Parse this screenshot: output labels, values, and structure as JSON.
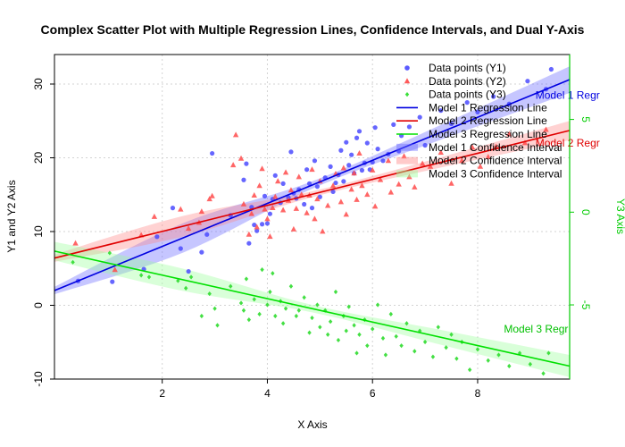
{
  "chart_data": {
    "type": "scatter",
    "title": "Complex Scatter Plot with Multiple Regression Lines, Confidence Intervals, and Dual Y-Axis",
    "xlabel": "X Axis",
    "ylabel": "Y1 and Y2 Axis",
    "y3label": "Y3 Axis",
    "xlim": [
      -0.05,
      9.75
    ],
    "ylim": [
      -10,
      34
    ],
    "y3lim": [
      -9,
      8.5
    ],
    "xticks": [
      2,
      4,
      6,
      8
    ],
    "yticks": [
      -10,
      0,
      10,
      20,
      30
    ],
    "y3ticks": [
      -5,
      0,
      5
    ],
    "grid": true,
    "legend_position": "top-right",
    "colors": {
      "y1": "#2929ff",
      "y2": "#ff2929",
      "y3": "#1fe01f"
    },
    "legend": [
      {
        "label": "Data points (Y1)",
        "kind": "point-circle",
        "color": "#5a5aff"
      },
      {
        "label": "Data points (Y2)",
        "kind": "point-triangle",
        "color": "#ff5a5a"
      },
      {
        "label": "Data points (Y3)",
        "kind": "point-diamond",
        "color": "#3ce03c"
      },
      {
        "label": "Model 1 Regression Line",
        "kind": "line",
        "color": "#0000e0"
      },
      {
        "label": "Model 2 Regression Line",
        "kind": "line",
        "color": "#e00000"
      },
      {
        "label": "Model 3 Regression Line",
        "kind": "line",
        "color": "#00e000"
      },
      {
        "label": "Model 1 Confidence Interval",
        "kind": "band",
        "color": "#6a6aff"
      },
      {
        "label": "Model 2 Confidence Interval",
        "kind": "band",
        "color": "#ff8a8a"
      },
      {
        "label": "Model 3 Confidence Interval",
        "kind": "band",
        "color": "#9cff9c"
      }
    ],
    "annotations": [
      {
        "text": "Model 1 Regr",
        "x": 9.1,
        "y": 28.0,
        "axis": "y1",
        "color": "#0000e0"
      },
      {
        "text": "Model 2 Regr",
        "x": 9.1,
        "y": 21.5,
        "axis": "y1",
        "color": "#e00000"
      },
      {
        "text": "Model 3 Regr",
        "x": 8.5,
        "y": -6.5,
        "axis": "y3",
        "color": "#00c000"
      }
    ],
    "regression": [
      {
        "name": "Model 1 Regression Line",
        "axis": "y1",
        "color": "#0000e0",
        "band": "#6a6aff",
        "x": [
          -0.05,
          9.75
        ],
        "y": [
          2.0,
          30.6
        ],
        "band_half": [
          0.5,
          2.0,
          0.5,
          1.0,
          1.8
        ]
      },
      {
        "name": "Model 2 Regression Line",
        "axis": "y1",
        "color": "#e00000",
        "band": "#ff8a8a",
        "x": [
          -0.05,
          9.75
        ],
        "y": [
          6.4,
          23.7
        ],
        "band_half": [
          0.5,
          1.4,
          0.4,
          0.7,
          1.3
        ]
      },
      {
        "name": "Model 3 Regression Line",
        "axis": "y3",
        "color": "#00e000",
        "band": "#9cff9c",
        "x": [
          -0.05,
          9.75
        ],
        "y": [
          -2.1,
          -8.3
        ],
        "band_half": [
          0.5,
          0.6,
          0.2,
          0.4,
          0.6
        ]
      }
    ],
    "series": [
      {
        "name": "Data points (Y1)",
        "axis": "y1",
        "marker": "circle",
        "color": "#4b4bff",
        "points": [
          [
            0.4,
            3.3
          ],
          [
            1.05,
            3.2
          ],
          [
            1.65,
            4.9
          ],
          [
            1.9,
            9.3
          ],
          [
            2.35,
            7.7
          ],
          [
            2.5,
            4.6
          ],
          [
            2.75,
            7.2
          ],
          [
            2.85,
            9.6
          ],
          [
            2.95,
            20.6
          ],
          [
            2.2,
            13.2
          ],
          [
            3.3,
            12.2
          ],
          [
            3.55,
            17.0
          ],
          [
            3.6,
            19.2
          ],
          [
            3.65,
            8.4
          ],
          [
            3.7,
            13.3
          ],
          [
            3.75,
            10.9
          ],
          [
            3.8,
            10.1
          ],
          [
            3.9,
            11.0
          ],
          [
            3.95,
            14.8
          ],
          [
            4.0,
            11.1
          ],
          [
            4.05,
            12.4
          ],
          [
            4.1,
            14.4
          ],
          [
            4.15,
            17.6
          ],
          [
            4.25,
            13.9
          ],
          [
            4.3,
            16.5
          ],
          [
            4.4,
            14.6
          ],
          [
            4.45,
            20.8
          ],
          [
            4.5,
            15.2
          ],
          [
            4.55,
            14.5
          ],
          [
            4.6,
            15.7
          ],
          [
            4.7,
            13.7
          ],
          [
            4.75,
            18.4
          ],
          [
            4.8,
            16.5
          ],
          [
            4.85,
            13.2
          ],
          [
            4.9,
            19.6
          ],
          [
            4.95,
            16.1
          ],
          [
            5.0,
            14.7
          ],
          [
            5.1,
            17.3
          ],
          [
            5.2,
            18.8
          ],
          [
            5.25,
            15.4
          ],
          [
            5.3,
            16.6
          ],
          [
            5.35,
            17.7
          ],
          [
            5.4,
            21.0
          ],
          [
            5.45,
            16.8
          ],
          [
            5.5,
            22.1
          ],
          [
            5.55,
            19.0
          ],
          [
            5.6,
            20.4
          ],
          [
            5.65,
            17.9
          ],
          [
            5.7,
            22.7
          ],
          [
            5.75,
            23.6
          ],
          [
            5.8,
            18.3
          ],
          [
            5.85,
            19.3
          ],
          [
            5.9,
            22.0
          ],
          [
            5.95,
            18.4
          ],
          [
            6.0,
            19.4
          ],
          [
            6.05,
            24.1
          ],
          [
            6.1,
            21.2
          ],
          [
            6.2,
            19.6
          ],
          [
            6.3,
            20.5
          ],
          [
            6.4,
            24.5
          ],
          [
            6.5,
            20.9
          ],
          [
            6.55,
            23.0
          ],
          [
            6.7,
            24.2
          ],
          [
            6.9,
            25.5
          ],
          [
            7.0,
            21.7
          ],
          [
            7.3,
            26.4
          ],
          [
            7.5,
            24.6
          ],
          [
            7.8,
            27.5
          ],
          [
            8.0,
            26.2
          ],
          [
            8.3,
            28.3
          ],
          [
            8.6,
            27.3
          ],
          [
            8.95,
            30.4
          ],
          [
            9.3,
            29.3
          ],
          [
            9.4,
            32.0
          ]
        ]
      },
      {
        "name": "Data points (Y2)",
        "axis": "y1",
        "marker": "triangle",
        "color": "#ff4b4b",
        "points": [
          [
            0.35,
            8.4
          ],
          [
            1.1,
            4.8
          ],
          [
            1.6,
            9.5
          ],
          [
            1.85,
            12.0
          ],
          [
            2.35,
            13.0
          ],
          [
            2.5,
            10.4
          ],
          [
            2.7,
            11.2
          ],
          [
            2.75,
            12.7
          ],
          [
            2.9,
            14.4
          ],
          [
            2.95,
            14.8
          ],
          [
            3.35,
            19.0
          ],
          [
            3.4,
            23.1
          ],
          [
            3.5,
            19.9
          ],
          [
            3.55,
            13.7
          ],
          [
            3.65,
            9.6
          ],
          [
            3.7,
            12.4
          ],
          [
            3.75,
            14.9
          ],
          [
            3.8,
            10.6
          ],
          [
            3.85,
            16.2
          ],
          [
            3.9,
            18.5
          ],
          [
            3.95,
            13.0
          ],
          [
            4.0,
            11.7
          ],
          [
            4.05,
            9.3
          ],
          [
            4.1,
            13.2
          ],
          [
            4.15,
            14.7
          ],
          [
            4.2,
            16.8
          ],
          [
            4.3,
            12.9
          ],
          [
            4.35,
            18.0
          ],
          [
            4.4,
            14.2
          ],
          [
            4.45,
            15.6
          ],
          [
            4.5,
            10.3
          ],
          [
            4.55,
            13.1
          ],
          [
            4.6,
            17.4
          ],
          [
            4.65,
            15.0
          ],
          [
            4.75,
            12.5
          ],
          [
            4.8,
            14.9
          ],
          [
            4.85,
            18.4
          ],
          [
            4.9,
            11.7
          ],
          [
            4.95,
            14.4
          ],
          [
            5.0,
            16.8
          ],
          [
            5.05,
            10.0
          ],
          [
            5.15,
            13.5
          ],
          [
            5.25,
            16.2
          ],
          [
            5.3,
            17.8
          ],
          [
            5.4,
            14.0
          ],
          [
            5.45,
            18.6
          ],
          [
            5.5,
            12.3
          ],
          [
            5.6,
            15.7
          ],
          [
            5.65,
            17.9
          ],
          [
            5.7,
            14.3
          ],
          [
            5.75,
            20.6
          ],
          [
            5.8,
            16.2
          ],
          [
            5.9,
            15.0
          ],
          [
            6.0,
            18.3
          ],
          [
            6.05,
            13.4
          ],
          [
            6.15,
            17.0
          ],
          [
            6.3,
            19.6
          ],
          [
            6.35,
            15.3
          ],
          [
            6.5,
            16.4
          ],
          [
            6.6,
            20.2
          ],
          [
            6.7,
            17.4
          ],
          [
            6.8,
            16.0
          ],
          [
            6.95,
            19.2
          ],
          [
            7.1,
            18.8
          ],
          [
            7.3,
            20.7
          ],
          [
            7.5,
            16.5
          ],
          [
            7.7,
            19.6
          ],
          [
            7.9,
            21.4
          ],
          [
            8.05,
            18.8
          ],
          [
            8.2,
            20.1
          ],
          [
            8.35,
            21.5
          ],
          [
            8.6,
            23.2
          ],
          [
            8.9,
            22.0
          ],
          [
            9.3,
            23.8
          ]
        ]
      },
      {
        "name": "Data points (Y3)",
        "axis": "y3",
        "marker": "diamond",
        "color": "#2fdc2f",
        "points": [
          [
            0.3,
            -2.7
          ],
          [
            1.0,
            -2.2
          ],
          [
            1.6,
            -3.4
          ],
          [
            1.75,
            -3.5
          ],
          [
            2.3,
            -3.7
          ],
          [
            2.45,
            -4.1
          ],
          [
            2.55,
            -3.5
          ],
          [
            2.75,
            -5.6
          ],
          [
            2.9,
            -4.4
          ],
          [
            3.0,
            -5.2
          ],
          [
            3.05,
            -6.1
          ],
          [
            3.3,
            -4.0
          ],
          [
            3.5,
            -4.9
          ],
          [
            3.55,
            -5.3
          ],
          [
            3.6,
            -3.6
          ],
          [
            3.65,
            -5.8
          ],
          [
            3.75,
            -4.7
          ],
          [
            3.85,
            -5.5
          ],
          [
            3.9,
            -3.1
          ],
          [
            4.0,
            -5.0
          ],
          [
            4.05,
            -4.3
          ],
          [
            4.1,
            -3.3
          ],
          [
            4.15,
            -5.6
          ],
          [
            4.25,
            -4.8
          ],
          [
            4.3,
            -6.0
          ],
          [
            4.35,
            -5.2
          ],
          [
            4.45,
            -4.0
          ],
          [
            4.55,
            -5.6
          ],
          [
            4.6,
            -5.3
          ],
          [
            4.7,
            -4.6
          ],
          [
            4.8,
            -6.5
          ],
          [
            4.85,
            -5.7
          ],
          [
            4.95,
            -5.0
          ],
          [
            5.0,
            -6.2
          ],
          [
            5.1,
            -5.3
          ],
          [
            5.15,
            -6.6
          ],
          [
            5.2,
            -5.9
          ],
          [
            5.3,
            -4.3
          ],
          [
            5.35,
            -6.9
          ],
          [
            5.45,
            -5.6
          ],
          [
            5.5,
            -6.4
          ],
          [
            5.55,
            -5.1
          ],
          [
            5.65,
            -6.1
          ],
          [
            5.7,
            -7.6
          ],
          [
            5.75,
            -6.6
          ],
          [
            5.85,
            -5.8
          ],
          [
            5.9,
            -7.2
          ],
          [
            6.0,
            -6.3
          ],
          [
            6.1,
            -5.0
          ],
          [
            6.2,
            -6.8
          ],
          [
            6.25,
            -7.7
          ],
          [
            6.35,
            -5.5
          ],
          [
            6.45,
            -6.7
          ],
          [
            6.55,
            -7.2
          ],
          [
            6.65,
            -6.0
          ],
          [
            6.8,
            -7.5
          ],
          [
            6.9,
            -6.4
          ],
          [
            7.0,
            -7.0
          ],
          [
            7.15,
            -7.8
          ],
          [
            7.25,
            -6.2
          ],
          [
            7.4,
            -7.3
          ],
          [
            7.5,
            -6.6
          ],
          [
            7.6,
            -7.9
          ],
          [
            7.7,
            -7.0
          ],
          [
            7.85,
            -8.5
          ],
          [
            8.0,
            -7.4
          ],
          [
            8.2,
            -8.0
          ],
          [
            8.4,
            -7.7
          ],
          [
            8.6,
            -8.3
          ],
          [
            8.8,
            -7.6
          ],
          [
            9.0,
            -8.2
          ],
          [
            9.25,
            -8.7
          ],
          [
            9.35,
            -7.6
          ]
        ]
      }
    ]
  }
}
